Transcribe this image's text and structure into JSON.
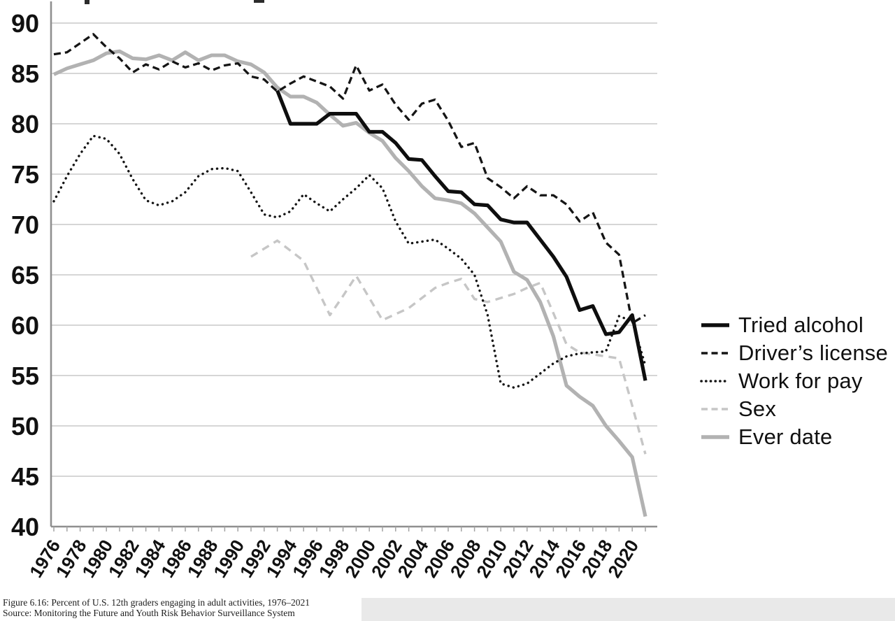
{
  "caption": {
    "line1": "Figure 6.16: Percent of U.S. 12th graders engaging in adult activities, 1976–2021",
    "line2": "Source: Monitoring the Future and Youth Risk Behavior Surveillance System"
  },
  "colors": {
    "grid": "#c8c8c8",
    "axis": "#8f8f8f",
    "tick": "#a3a3a3",
    "label": "#111111",
    "black_series": "#111111",
    "gray_series": "#b2b2b2",
    "light_gray_series": "#c6c6c6"
  },
  "chart_data": {
    "type": "line",
    "title": "",
    "xlabel": "",
    "ylabel": "",
    "ylim": [
      40,
      90
    ],
    "grid": true,
    "legend_position": "right",
    "y_ticks": [
      40,
      45,
      50,
      55,
      60,
      65,
      70,
      75,
      80,
      85,
      90
    ],
    "x": [
      1976,
      1977,
      1978,
      1979,
      1980,
      1981,
      1982,
      1983,
      1984,
      1985,
      1986,
      1987,
      1988,
      1989,
      1990,
      1991,
      1992,
      1993,
      1994,
      1995,
      1996,
      1997,
      1998,
      1999,
      2000,
      2001,
      2002,
      2003,
      2004,
      2005,
      2006,
      2007,
      2008,
      2009,
      2010,
      2011,
      2012,
      2013,
      2014,
      2015,
      2016,
      2017,
      2018,
      2019,
      2020,
      2021
    ],
    "x_tick_labels": [
      "1976",
      "1978",
      "1980",
      "1982",
      "1984",
      "1986",
      "1988",
      "1990",
      "1992",
      "1994",
      "1996",
      "1998",
      "2000",
      "2002",
      "2004",
      "2006",
      "2008",
      "2010",
      "2012",
      "2014",
      "2016",
      "2018",
      "2020"
    ],
    "series": [
      {
        "name": "Tried alcohol",
        "style": "solid",
        "color": "#0e0e0e",
        "width": 5.2,
        "values": [
          null,
          null,
          null,
          null,
          null,
          null,
          null,
          null,
          null,
          null,
          null,
          null,
          null,
          null,
          null,
          null,
          null,
          83.3,
          80,
          80,
          80,
          81,
          81,
          81,
          79.2,
          79.2,
          78.1,
          76.5,
          76.4,
          74.8,
          73.3,
          73.2,
          72,
          71.9,
          70.5,
          70.2,
          70.2,
          68.5,
          66.8,
          64.8,
          61.5,
          61.9,
          59.1,
          59.3,
          61,
          54.5
        ]
      },
      {
        "name": "Driver’s license",
        "style": "dashed",
        "color": "#151515",
        "width": 3.3,
        "values": [
          86.9,
          87.1,
          88,
          88.9,
          87.6,
          86.5,
          85.1,
          85.9,
          85.4,
          86.2,
          85.6,
          86,
          85.3,
          85.8,
          86,
          84.7,
          84.4,
          83.2,
          84,
          84.7,
          84.2,
          83.7,
          82.5,
          85.8,
          83.3,
          83.9,
          81.9,
          80.4,
          82,
          82.4,
          80.3,
          77.7,
          78.1,
          74.6,
          73.7,
          72.6,
          73.8,
          72.9,
          72.9,
          72,
          70.3,
          71.2,
          68.2,
          67,
          60.2,
          61
        ]
      },
      {
        "name": "Work for pay",
        "style": "dotted",
        "color": "#151515",
        "width": 3.4,
        "values": [
          72.3,
          74.8,
          77,
          78.8,
          78.5,
          77,
          74.5,
          72.4,
          71.9,
          72.3,
          73.2,
          74.8,
          75.5,
          75.6,
          75.3,
          73.2,
          71,
          70.7,
          71.3,
          73,
          72.1,
          71.3,
          72.5,
          73.6,
          74.9,
          73.6,
          70.3,
          68.1,
          68.3,
          68.5,
          67.6,
          66.6,
          65,
          61,
          54.2,
          53.8,
          54.2,
          55.2,
          56.2,
          56.9,
          57.2,
          57.3,
          57.4,
          60.9,
          60.4,
          56
        ]
      },
      {
        "name": "Sex",
        "style": "dashed",
        "color": "#c6c6c6",
        "width": 3.4,
        "values": [
          null,
          null,
          null,
          null,
          null,
          null,
          null,
          null,
          null,
          null,
          null,
          null,
          null,
          null,
          null,
          66.8,
          67.6,
          68.4,
          67.4,
          66.4,
          63.7,
          61,
          62.9,
          64.9,
          62.7,
          60.5,
          61.1,
          61.7,
          62.7,
          63.7,
          64.2,
          64.6,
          62.6,
          62.3,
          62.7,
          63.1,
          63.7,
          64.2,
          61.2,
          58.1,
          57.3,
          57.1,
          56.9,
          56.7,
          52,
          47.2
        ]
      },
      {
        "name": "Ever date",
        "style": "solid",
        "color": "#b2b2b2",
        "width": 5.2,
        "values": [
          84.9,
          85.5,
          85.9,
          86.3,
          87,
          87.2,
          86.5,
          86.4,
          86.8,
          86.3,
          87.1,
          86.3,
          86.8,
          86.8,
          86.2,
          85.9,
          85.1,
          83.6,
          82.7,
          82.7,
          82.1,
          80.9,
          79.8,
          80.1,
          79.1,
          78.3,
          76.6,
          75.3,
          73.8,
          72.6,
          72.4,
          72.1,
          71.1,
          69.7,
          68.3,
          65.3,
          64.5,
          62.3,
          58.9,
          54,
          52.9,
          52,
          50,
          48.5,
          46.9,
          41
        ]
      }
    ]
  }
}
